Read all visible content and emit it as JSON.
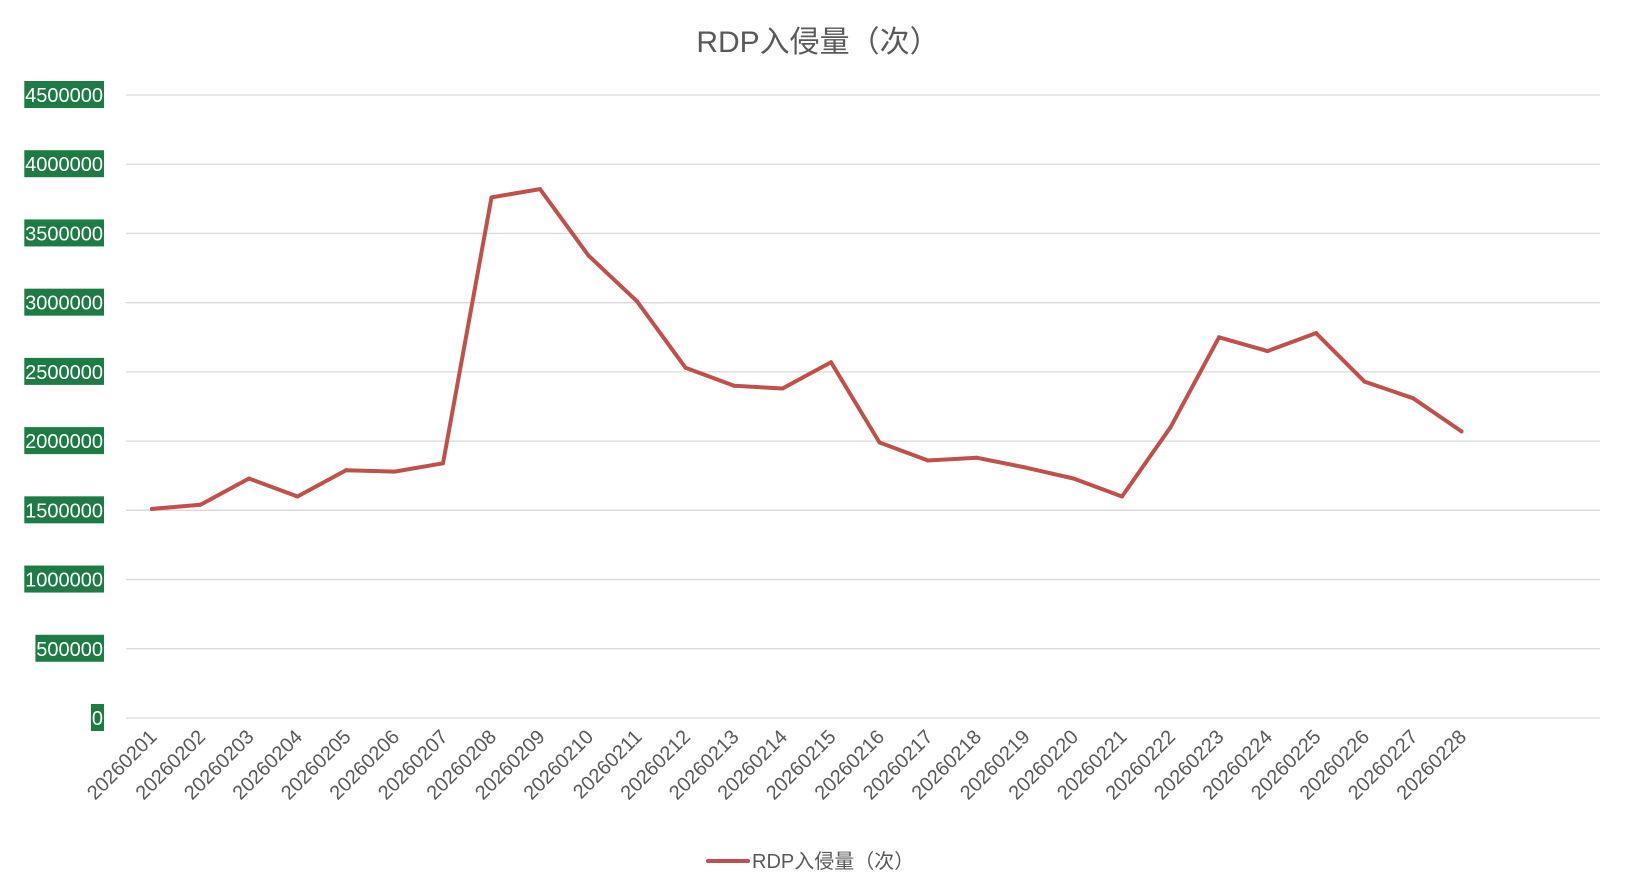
{
  "chart_data": {
    "type": "line",
    "title": "RDP入侵量（次）",
    "xlabel": "",
    "ylabel": "",
    "ylim": [
      0,
      4500000
    ],
    "yticks": [
      0,
      500000,
      1000000,
      1500000,
      2000000,
      2500000,
      3000000,
      3500000,
      4000000,
      4500000
    ],
    "ytick_labels": [
      "0",
      "500000",
      "1000000",
      "1500000",
      "2000000",
      "2500000",
      "3000000",
      "3500000",
      "4000000",
      "4500000"
    ],
    "ytick_label_bg": "#1e7b45",
    "grid": true,
    "legend_position": "bottom",
    "categories": [
      "20260201",
      "20260202",
      "20260203",
      "20260204",
      "20260205",
      "20260206",
      "20260207",
      "20260208",
      "20260209",
      "20260210",
      "20260211",
      "20260212",
      "20260213",
      "20260214",
      "20260215",
      "20260216",
      "20260217",
      "20260218",
      "20260219",
      "20260220",
      "20260221",
      "20260222",
      "20260223",
      "20260224",
      "20260225",
      "20260226",
      "20260227",
      "20260228"
    ],
    "series": [
      {
        "name": "RDP入侵量（次）",
        "color": "#c0504d",
        "values": [
          1510000,
          1540000,
          1730000,
          1600000,
          1790000,
          1780000,
          1840000,
          3760000,
          3820000,
          3340000,
          3010000,
          2530000,
          2400000,
          2380000,
          2570000,
          1990000,
          1860000,
          1880000,
          1810000,
          1730000,
          1600000,
          2100000,
          2750000,
          2650000,
          2780000,
          2430000,
          2310000,
          2070000
        ]
      }
    ]
  }
}
